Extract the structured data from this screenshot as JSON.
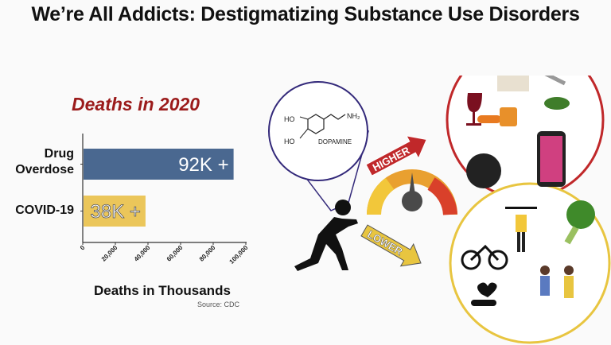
{
  "title": "We’re All Addicts: Destigmatizing Substance Use Disorders",
  "chart_data": {
    "type": "bar",
    "orientation": "horizontal",
    "title": "Deaths in 2020",
    "categories": [
      "Drug Overdose",
      "COVID-19"
    ],
    "values": [
      92000,
      38000
    ],
    "data_labels": [
      "92K +",
      "38K +"
    ],
    "colors": [
      "#4a6890",
      "#ebc65a"
    ],
    "xlabel": "Deaths in Thousands",
    "xlim": [
      0,
      100000
    ],
    "xticks": [
      "0",
      "20,000",
      "40,000",
      "60,000",
      "80,000",
      "100,000"
    ],
    "grid": false,
    "source": "Source: CDC"
  },
  "diagram": {
    "molecule_label": "DOPAMINE",
    "molecule_groups": [
      "HO",
      "HO",
      "NH₂"
    ],
    "higher_label": "HIGHER",
    "lower_label": "LOWER",
    "higher_color": "#c0282a",
    "lower_color": "#e8c540"
  }
}
